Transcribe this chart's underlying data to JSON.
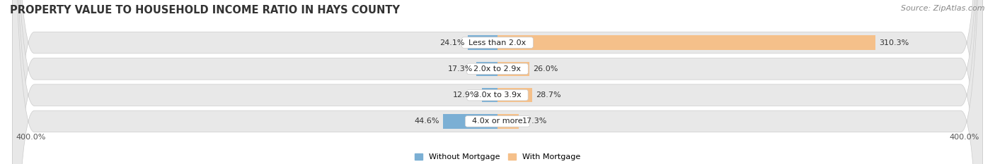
{
  "title": "PROPERTY VALUE TO HOUSEHOLD INCOME RATIO IN HAYS COUNTY",
  "source": "Source: ZipAtlas.com",
  "categories": [
    "Less than 2.0x",
    "2.0x to 2.9x",
    "3.0x to 3.9x",
    "4.0x or more"
  ],
  "without_mortgage": [
    24.1,
    17.3,
    12.9,
    44.6
  ],
  "with_mortgage": [
    310.3,
    26.0,
    28.7,
    17.3
  ],
  "color_without": "#7bafd4",
  "color_with": "#f5c08a",
  "axis_label_left": "400.0%",
  "axis_label_right": "400.0%",
  "xlim": [
    -400,
    400
  ],
  "bar_height": 0.55,
  "title_fontsize": 10.5,
  "source_fontsize": 8,
  "label_fontsize": 8,
  "category_fontsize": 8,
  "axis_tick_fontsize": 8,
  "legend_fontsize": 8
}
